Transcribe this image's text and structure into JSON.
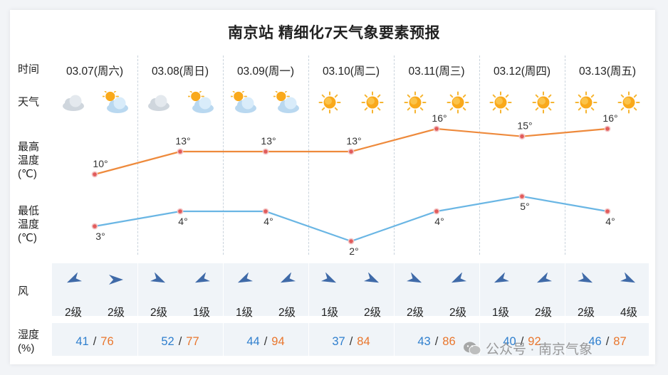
{
  "title": "南京站 精细化7天气象要素预报",
  "row_labels": {
    "time": "时间",
    "weather": "天气",
    "max_temp": "最高\n温度\n(℃)",
    "min_temp": "最低\n温度\n(℃)",
    "wind": "风",
    "humidity": "湿度\n(%)"
  },
  "days": [
    {
      "date": "03.07(周六)",
      "weather": [
        "cloudy",
        "partly-cloudy"
      ],
      "wind": [
        {
          "dir": "ne",
          "level": "2级"
        },
        {
          "dir": "e",
          "level": "2级"
        }
      ],
      "humidity": {
        "low": "41",
        "high": "76"
      }
    },
    {
      "date": "03.08(周日)",
      "weather": [
        "cloudy",
        "partly-cloudy"
      ],
      "wind": [
        {
          "dir": "nw",
          "level": "2级"
        },
        {
          "dir": "ne",
          "level": "1级"
        }
      ],
      "humidity": {
        "low": "52",
        "high": "77"
      }
    },
    {
      "date": "03.09(周一)",
      "weather": [
        "partly-cloudy",
        "partly-cloudy"
      ],
      "wind": [
        {
          "dir": "ne",
          "level": "1级"
        },
        {
          "dir": "ne",
          "level": "2级"
        }
      ],
      "humidity": {
        "low": "44",
        "high": "94"
      }
    },
    {
      "date": "03.10(周二)",
      "weather": [
        "sunny",
        "sunny"
      ],
      "wind": [
        {
          "dir": "nw",
          "level": "1级"
        },
        {
          "dir": "nw",
          "level": "2级"
        }
      ],
      "humidity": {
        "low": "37",
        "high": "84"
      }
    },
    {
      "date": "03.11(周三)",
      "weather": [
        "sunny",
        "sunny"
      ],
      "wind": [
        {
          "dir": "nw",
          "level": "2级"
        },
        {
          "dir": "ne",
          "level": "2级"
        }
      ],
      "humidity": {
        "low": "43",
        "high": "86"
      }
    },
    {
      "date": "03.12(周四)",
      "weather": [
        "sunny",
        "sunny"
      ],
      "wind": [
        {
          "dir": "ne",
          "level": "1级"
        },
        {
          "dir": "ne",
          "level": "2级"
        }
      ],
      "humidity": {
        "low": "40",
        "high": "92"
      }
    },
    {
      "date": "03.13(周五)",
      "weather": [
        "sunny",
        "sunny"
      ],
      "wind": [
        {
          "dir": "nw",
          "level": "2级"
        },
        {
          "dir": "nw",
          "level": "4级"
        }
      ],
      "humidity": {
        "low": "46",
        "high": "87"
      }
    }
  ],
  "chart_data": {
    "type": "line",
    "categories": [
      "03.07(周六)",
      "03.08(周日)",
      "03.09(周一)",
      "03.10(周二)",
      "03.11(周三)",
      "03.12(周四)",
      "03.13(周五)"
    ],
    "series": [
      {
        "values": [
          10,
          13,
          13,
          13,
          16,
          15,
          16
        ],
        "labels": [
          "10°",
          "13°",
          "13°",
          "13°",
          "16°",
          "15°",
          "16°"
        ],
        "color": "#ee8a3c"
      },
      {
        "values": [
          3,
          4,
          4,
          2,
          4,
          5,
          4
        ],
        "labels": [
          "3°",
          "4°",
          "4°",
          "2°",
          "4°",
          "5°",
          "4°"
        ],
        "color": "#6ab6e4"
      }
    ]
  },
  "colors": {
    "max_line": "#ee8a3c",
    "min_line": "#6ab6e4",
    "humidity_low": "#2f7fce",
    "humidity_high": "#e9762d",
    "wind_arrow": "#3f6aa8",
    "point_fill": "#e15b5b"
  },
  "humidity_sep": "/",
  "watermark": "公众号 · 南京气象"
}
